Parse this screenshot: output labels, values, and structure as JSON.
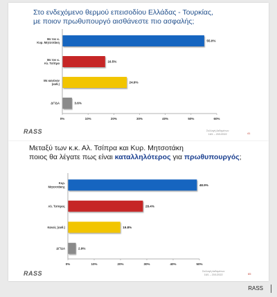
{
  "slide1": {
    "title_line1": "Στο ενδεχόμενο θερμού επεισοδίου Ελλάδας - Τουρκίας,",
    "title_line2": "με ποιον πρωθυπουργό αισθάνεστε πιο ασφαλής;",
    "logo": "RASS",
    "footnote_line1": "Συλλογή Δεδομένων",
    "footnote_line2": "16/1 – 20/1/2022",
    "page_number": "41"
  },
  "slide2": {
    "title_line1": "Μεταξύ των κ.κ. Αλ. Τσίπρα και Κυρ. Μητσοτάκη",
    "title_line2_pre": "ποιος θα λέγατε πως είναι ",
    "title_line2_em1": "καταλληλότερος",
    "title_line2_mid": " για ",
    "title_line2_em2": "πρωθυπουργός",
    "title_line2_post": ";",
    "logo": "RASS",
    "footnote_line1": "Συλλογή Δεδομένων",
    "footnote_line2": "16/1 – 20/1/2022",
    "page_number": "65"
  },
  "watermark": "RASS",
  "chart_data": [
    {
      "type": "bar",
      "orientation": "horizontal",
      "categories": [
        "Με τον κ. Κυρ. Μητσοτάκη",
        "Με τον κ. Αλ. Τσίπρα",
        "Με κανέναν (αυθ.)",
        "ΔΓ/ΔΑ"
      ],
      "values": [
        55.0,
        16.5,
        24.9,
        3.6
      ],
      "value_labels": [
        "55.0%",
        "16.5%",
        "24.9%",
        "3.6%"
      ],
      "colors": [
        "#1565c0",
        "#c62828",
        "#f2c500",
        "#8a8a8a"
      ],
      "xlim": [
        0,
        60
      ],
      "ticks": [
        0,
        10,
        20,
        30,
        40,
        50,
        60
      ],
      "tick_labels": [
        "0%",
        "10%",
        "20%",
        "30%",
        "40%",
        "50%",
        "60%"
      ],
      "grid": false,
      "legend": "none"
    },
    {
      "type": "bar",
      "orientation": "horizontal",
      "categories": [
        "Κυρ. Μητσοτάκης",
        "Αλ. Τσίπρας",
        "Κανείς (αυθ.)",
        "ΔΓ/ΔΑ"
      ],
      "values": [
        48.9,
        28.4,
        19.8,
        2.9
      ],
      "value_labels": [
        "48.9%",
        "28.4%",
        "19.8%",
        "2.9%"
      ],
      "colors": [
        "#1565c0",
        "#c62828",
        "#f2c500",
        "#8a8a8a"
      ],
      "xlim": [
        0,
        50
      ],
      "ticks": [
        0,
        10,
        20,
        30,
        40,
        50
      ],
      "tick_labels": [
        "0%",
        "10%",
        "20%",
        "30%",
        "40%",
        "50%"
      ],
      "grid": false,
      "legend": "none"
    }
  ]
}
